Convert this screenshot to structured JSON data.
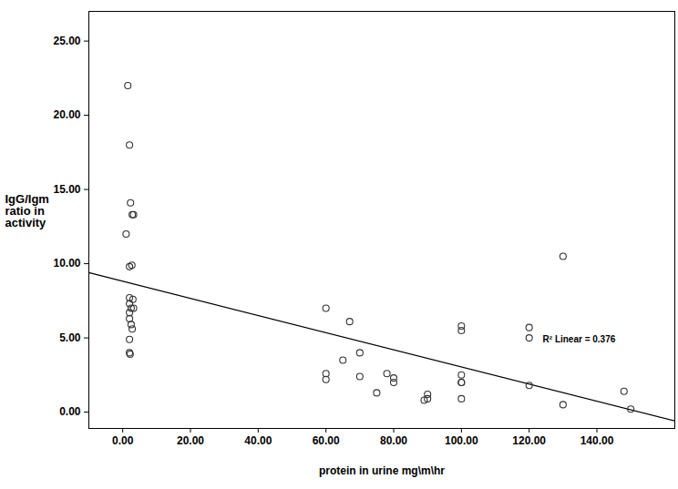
{
  "chart_data": {
    "type": "scatter",
    "x_label": "protein in urine mg\\m\\hr",
    "y_label": "IgG/Igm ratio in activity",
    "marker": "circle",
    "color": "#333333",
    "x": [
      1.5,
      2,
      2.3,
      2.8,
      3.2,
      1,
      2,
      2.7,
      2,
      3,
      2,
      2.5,
      3.2,
      2,
      2,
      2.5,
      2.8,
      2,
      2,
      2.2,
      60,
      60,
      60,
      65,
      67,
      70,
      70,
      75,
      78,
      80,
      80,
      89,
      90,
      90,
      100,
      100,
      100,
      100,
      100,
      100,
      120,
      120,
      120,
      130,
      130,
      148,
      150
    ],
    "values": [
      22,
      18,
      14.1,
      13.3,
      13.3,
      12,
      9.8,
      9.9,
      7.7,
      7.6,
      7.3,
      7.0,
      7.0,
      6.7,
      6.3,
      5.9,
      5.6,
      4.9,
      4.0,
      3.9,
      7.0,
      2.6,
      2.2,
      3.5,
      6.1,
      4.0,
      2.4,
      1.3,
      2.6,
      2.3,
      2.0,
      0.8,
      1.2,
      0.9,
      5.8,
      5.5,
      2.5,
      2.0,
      2.0,
      0.9,
      5.7,
      5.0,
      1.8,
      10.5,
      0.5,
      1.4,
      0.2
    ],
    "fit_line": {
      "x": [
        -10,
        163
      ],
      "values": [
        9.4,
        -0.6
      ]
    },
    "annotations": [
      {
        "text": "R² Linear = 0.376",
        "x": 124,
        "y": 4.9
      }
    ],
    "xlim": [
      -10,
      163
    ],
    "ylim": [
      -1.1,
      27
    ],
    "xticks": [
      {
        "value": 0,
        "label": "0.00"
      },
      {
        "value": 20,
        "label": "20.00"
      },
      {
        "value": 40,
        "label": "40.00"
      },
      {
        "value": 60,
        "label": "60.00"
      },
      {
        "value": 80,
        "label": "80.00"
      },
      {
        "value": 100,
        "label": "100.00"
      },
      {
        "value": 120,
        "label": "120.00"
      },
      {
        "value": 140,
        "label": "140.00"
      }
    ],
    "yticks": [
      {
        "value": 0,
        "label": "0.00"
      },
      {
        "value": 5,
        "label": "5.00"
      },
      {
        "value": 10,
        "label": "10.00"
      },
      {
        "value": 15,
        "label": "15.00"
      },
      {
        "value": 20,
        "label": "20.00"
      },
      {
        "value": 25,
        "label": "25.00"
      }
    ]
  }
}
